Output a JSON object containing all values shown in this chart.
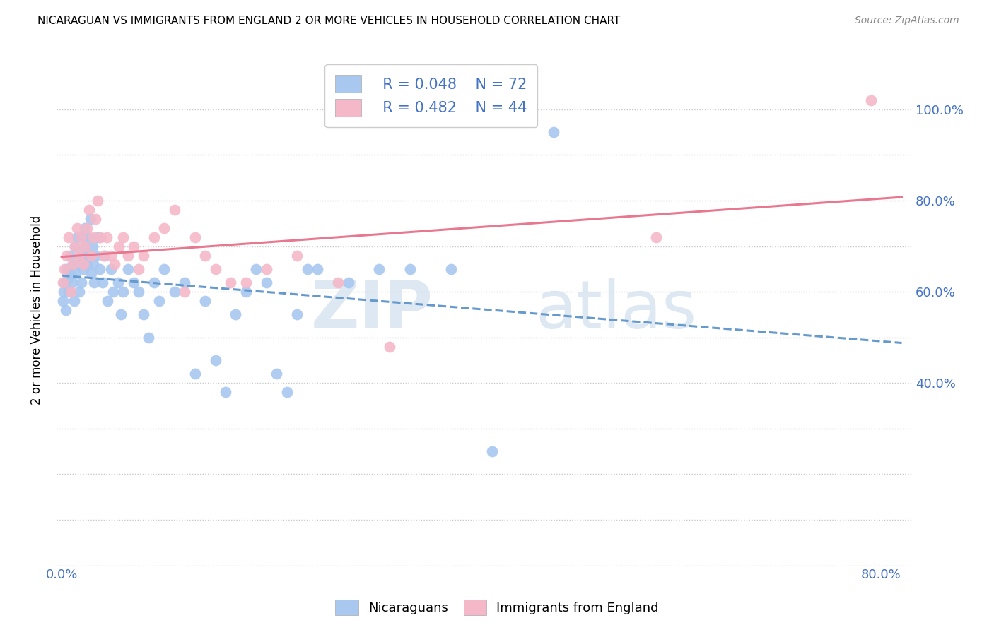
{
  "title": "NICARAGUAN VS IMMIGRANTS FROM ENGLAND 2 OR MORE VEHICLES IN HOUSEHOLD CORRELATION CHART",
  "source": "Source: ZipAtlas.com",
  "ylabel": "2 or more Vehicles in Household",
  "x_tick_positions": [
    0.0,
    0.1,
    0.2,
    0.3,
    0.4,
    0.5,
    0.6,
    0.7,
    0.8
  ],
  "x_tick_labels": [
    "0.0%",
    "",
    "",
    "",
    "",
    "",
    "",
    "",
    "80.0%"
  ],
  "y_tick_positions": [
    0.0,
    0.1,
    0.2,
    0.3,
    0.4,
    0.5,
    0.6,
    0.7,
    0.8,
    0.9,
    1.0
  ],
  "y_tick_labels_right": [
    "",
    "",
    "",
    "",
    "40.0%",
    "",
    "60.0%",
    "",
    "80.0%",
    "",
    "100.0%"
  ],
  "xlim": [
    -0.005,
    0.83
  ],
  "ylim": [
    0.0,
    1.12
  ],
  "legend_r1": "R = 0.048",
  "legend_n1": "N = 72",
  "legend_r2": "R = 0.482",
  "legend_n2": "N = 44",
  "color_blue": "#A8C8F0",
  "color_pink": "#F4B8C8",
  "color_blue_line": "#6699CC",
  "color_pink_line": "#E87890",
  "color_text_blue": "#4472C4",
  "watermark_text": "ZIP",
  "watermark_text2": "atlas",
  "nicaraguan_x": [
    0.001,
    0.002,
    0.003,
    0.004,
    0.005,
    0.006,
    0.007,
    0.008,
    0.009,
    0.01,
    0.011,
    0.012,
    0.013,
    0.014,
    0.015,
    0.016,
    0.017,
    0.018,
    0.019,
    0.02,
    0.021,
    0.022,
    0.023,
    0.024,
    0.025,
    0.026,
    0.027,
    0.028,
    0.029,
    0.03,
    0.031,
    0.032,
    0.033,
    0.035,
    0.037,
    0.04,
    0.042,
    0.045,
    0.048,
    0.05,
    0.055,
    0.058,
    0.06,
    0.065,
    0.07,
    0.075,
    0.08,
    0.085,
    0.09,
    0.095,
    0.1,
    0.11,
    0.12,
    0.13,
    0.14,
    0.15,
    0.16,
    0.17,
    0.18,
    0.19,
    0.2,
    0.21,
    0.22,
    0.23,
    0.24,
    0.25,
    0.28,
    0.31,
    0.34,
    0.38,
    0.42,
    0.48
  ],
  "nicaraguan_y": [
    0.58,
    0.6,
    0.62,
    0.56,
    0.65,
    0.63,
    0.6,
    0.68,
    0.64,
    0.62,
    0.66,
    0.58,
    0.7,
    0.64,
    0.72,
    0.66,
    0.6,
    0.68,
    0.62,
    0.72,
    0.65,
    0.7,
    0.74,
    0.68,
    0.66,
    0.72,
    0.68,
    0.76,
    0.64,
    0.7,
    0.66,
    0.62,
    0.68,
    0.72,
    0.65,
    0.62,
    0.68,
    0.58,
    0.65,
    0.6,
    0.62,
    0.55,
    0.6,
    0.65,
    0.62,
    0.6,
    0.55,
    0.5,
    0.62,
    0.58,
    0.65,
    0.6,
    0.62,
    0.42,
    0.58,
    0.45,
    0.38,
    0.55,
    0.6,
    0.65,
    0.62,
    0.42,
    0.38,
    0.55,
    0.65,
    0.65,
    0.62,
    0.65,
    0.65,
    0.65,
    0.25,
    0.95
  ],
  "england_x": [
    0.001,
    0.003,
    0.005,
    0.007,
    0.009,
    0.011,
    0.013,
    0.015,
    0.017,
    0.019,
    0.021,
    0.023,
    0.025,
    0.027,
    0.029,
    0.031,
    0.033,
    0.035,
    0.038,
    0.041,
    0.044,
    0.048,
    0.052,
    0.056,
    0.06,
    0.065,
    0.07,
    0.075,
    0.08,
    0.09,
    0.1,
    0.11,
    0.12,
    0.13,
    0.14,
    0.15,
    0.165,
    0.18,
    0.2,
    0.23,
    0.27,
    0.32,
    0.58,
    0.79
  ],
  "england_y": [
    0.62,
    0.65,
    0.68,
    0.72,
    0.6,
    0.66,
    0.7,
    0.74,
    0.68,
    0.72,
    0.66,
    0.7,
    0.74,
    0.78,
    0.68,
    0.72,
    0.76,
    0.8,
    0.72,
    0.68,
    0.72,
    0.68,
    0.66,
    0.7,
    0.72,
    0.68,
    0.7,
    0.65,
    0.68,
    0.72,
    0.74,
    0.78,
    0.6,
    0.72,
    0.68,
    0.65,
    0.62,
    0.62,
    0.65,
    0.68,
    0.62,
    0.48,
    0.72,
    1.02
  ]
}
